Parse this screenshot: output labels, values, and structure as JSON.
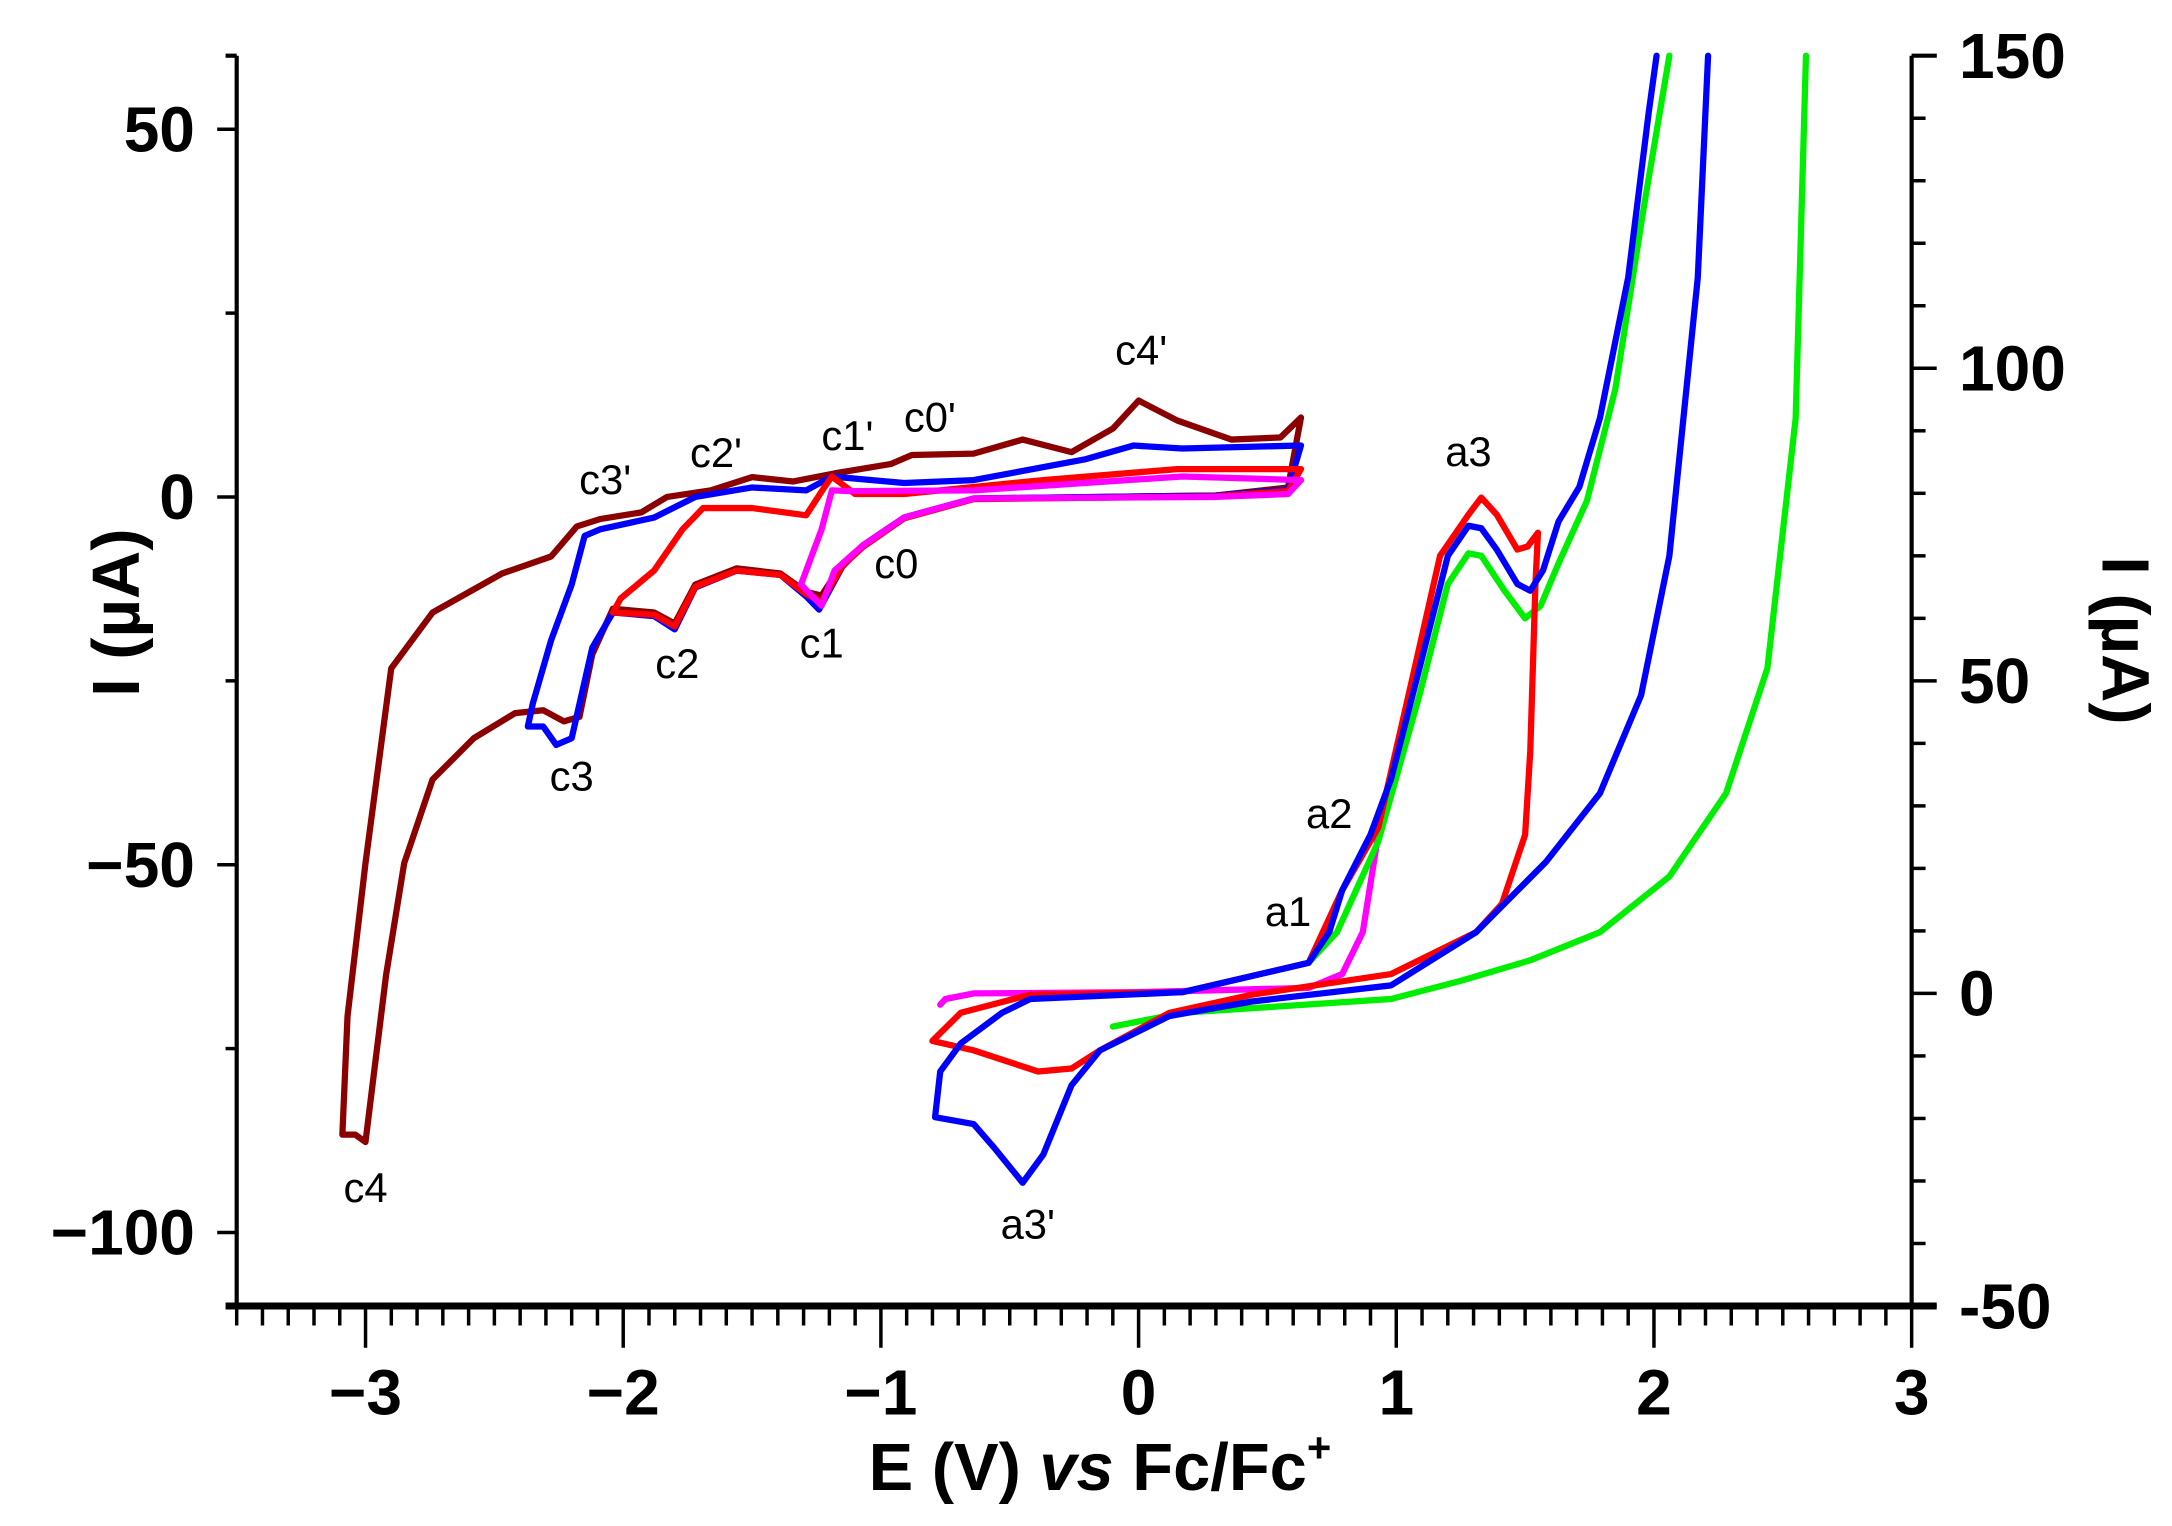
{
  "chart_data": {
    "type": "line",
    "xlabel": "E (V) vs Fc/Fc+",
    "xlabel_parts": {
      "main": "E (V) ",
      "italic": "vs",
      "ref": " Fc/Fc",
      "sup": "+"
    },
    "ylabel_left": "I (µA)",
    "ylabel_right": "I (µA)",
    "xlim": [
      -3.5,
      3
    ],
    "ylim_left": [
      -110,
      60
    ],
    "ylim_right": [
      -50,
      150
    ],
    "xticks": [
      -3,
      -2,
      -1,
      0,
      1,
      2,
      3
    ],
    "xtick_labels": [
      "−3",
      "−2",
      "−1",
      "0",
      "1",
      "2",
      "3"
    ],
    "yticks_left": [
      50,
      0,
      -50,
      -100
    ],
    "ytick_labels_left": [
      "50",
      "0",
      "−50",
      "−100"
    ],
    "yticks_right": [
      150,
      100,
      50,
      0,
      -50
    ],
    "ytick_labels_right": [
      "150",
      "100",
      "50",
      "0",
      "-50"
    ],
    "grid": false,
    "legend": "none",
    "series": [
      {
        "name": "dark red (cathodic)",
        "axis": "left",
        "color": "#8b0000",
        "points": [
          [
            0.63,
            10.8
          ],
          [
            0.58,
            1.3
          ],
          [
            0.3,
            0.2
          ],
          [
            -0.64,
            -0.2
          ],
          [
            -0.91,
            -2.8
          ],
          [
            -1.07,
            -6.6
          ],
          [
            -1.15,
            -9.1
          ],
          [
            -1.23,
            -13.4
          ],
          [
            -1.29,
            -12.9
          ],
          [
            -1.39,
            -10.4
          ],
          [
            -1.56,
            -9.7
          ],
          [
            -1.72,
            -11.9
          ],
          [
            -1.8,
            -17.2
          ],
          [
            -1.88,
            -15.7
          ],
          [
            -2.04,
            -15.2
          ],
          [
            -2.12,
            -21.4
          ],
          [
            -2.17,
            -29.9
          ],
          [
            -2.23,
            -30.5
          ],
          [
            -2.31,
            -29.0
          ],
          [
            -2.42,
            -29.4
          ],
          [
            -2.58,
            -32.8
          ],
          [
            -2.74,
            -38.4
          ],
          [
            -2.85,
            -49.8
          ],
          [
            -2.92,
            -65
          ],
          [
            -2.98,
            -82
          ],
          [
            -3.0,
            -87.7
          ],
          [
            -3.04,
            -86.7
          ],
          [
            -3.09,
            -86.7
          ],
          [
            -3.07,
            -70.6
          ],
          [
            -3.0,
            -49.8
          ],
          [
            -2.9,
            -23.3
          ],
          [
            -2.74,
            -15.7
          ],
          [
            -2.47,
            -10.4
          ],
          [
            -2.28,
            -8.1
          ],
          [
            -2.18,
            -4.0
          ],
          [
            -2.09,
            -3.0
          ],
          [
            -1.93,
            -2.1
          ],
          [
            -1.83,
            0
          ],
          [
            -1.66,
            0.9
          ],
          [
            -1.5,
            2.7
          ],
          [
            -1.34,
            2.1
          ],
          [
            -1.18,
            3.2
          ],
          [
            -0.96,
            4.5
          ],
          [
            -0.88,
            5.7
          ],
          [
            -0.64,
            5.9
          ],
          [
            -0.45,
            7.8
          ],
          [
            -0.26,
            6.1
          ],
          [
            -0.1,
            9.3
          ],
          [
            0,
            13.1
          ],
          [
            0.15,
            10.4
          ],
          [
            0.36,
            7.8
          ],
          [
            0.55,
            8.1
          ],
          [
            0.63,
            10.8
          ]
        ]
      },
      {
        "name": "blue (cathodic)",
        "axis": "left",
        "color": "#0000ff",
        "points": [
          [
            0.63,
            7.0
          ],
          [
            0.58,
            1.0
          ],
          [
            0.3,
            0.2
          ],
          [
            -0.64,
            -0.2
          ],
          [
            -0.91,
            -2.8
          ],
          [
            -1.07,
            -6.6
          ],
          [
            -1.15,
            -9.5
          ],
          [
            -1.24,
            -15.3
          ],
          [
            -1.29,
            -13.5
          ],
          [
            -1.39,
            -10.6
          ],
          [
            -1.56,
            -10.0
          ],
          [
            -1.72,
            -12.3
          ],
          [
            -1.8,
            -18.0
          ],
          [
            -1.88,
            -16.2
          ],
          [
            -2.04,
            -15.7
          ],
          [
            -2.12,
            -20.5
          ],
          [
            -2.2,
            -32.8
          ],
          [
            -2.26,
            -33.7
          ],
          [
            -2.31,
            -31.2
          ],
          [
            -2.37,
            -31.2
          ],
          [
            -2.35,
            -28
          ],
          [
            -2.28,
            -19.5
          ],
          [
            -2.2,
            -11.9
          ],
          [
            -2.15,
            -5.3
          ],
          [
            -2.09,
            -4.4
          ],
          [
            -1.88,
            -2.8
          ],
          [
            -1.72,
            0
          ],
          [
            -1.5,
            1.3
          ],
          [
            -1.29,
            0.9
          ],
          [
            -1.19,
            2.8
          ],
          [
            -0.91,
            1.9
          ],
          [
            -0.64,
            2.3
          ],
          [
            -0.21,
            5.1
          ],
          [
            -0.02,
            7.0
          ],
          [
            0.17,
            6.6
          ],
          [
            0.63,
            7.0
          ]
        ]
      },
      {
        "name": "red (cathodic)",
        "axis": "left",
        "color": "#ff0000",
        "points": [
          [
            0.63,
            3.8
          ],
          [
            0.58,
            0.8
          ],
          [
            0.3,
            0.1
          ],
          [
            -0.64,
            -0.3
          ],
          [
            -0.91,
            -2.9
          ],
          [
            -1.07,
            -6.8
          ],
          [
            -1.15,
            -9.4
          ],
          [
            -1.23,
            -14.2
          ],
          [
            -1.29,
            -13.2
          ],
          [
            -1.39,
            -10.6
          ],
          [
            -1.56,
            -10.0
          ],
          [
            -1.72,
            -12.2
          ],
          [
            -1.8,
            -17.6
          ],
          [
            -1.88,
            -16.0
          ],
          [
            -2.04,
            -15.7
          ],
          [
            -2.01,
            -13.8
          ],
          [
            -1.88,
            -10
          ],
          [
            -1.77,
            -4.4
          ],
          [
            -1.69,
            -1.5
          ],
          [
            -1.5,
            -1.5
          ],
          [
            -1.29,
            -2.5
          ],
          [
            -1.22,
            1.3
          ],
          [
            -1.19,
            2.8
          ],
          [
            -1.1,
            0.4
          ],
          [
            -0.91,
            0.4
          ],
          [
            -0.37,
            2.3
          ],
          [
            0.15,
            3.8
          ],
          [
            0.63,
            3.8
          ]
        ]
      },
      {
        "name": "magenta (cathodic)",
        "axis": "left",
        "color": "#ff00ff",
        "points": [
          [
            0.63,
            2.3
          ],
          [
            0.58,
            0.4
          ],
          [
            0.3,
            0
          ],
          [
            -0.64,
            -0.2
          ],
          [
            -0.91,
            -2.8
          ],
          [
            -1.07,
            -6.6
          ],
          [
            -1.18,
            -10
          ],
          [
            -1.23,
            -14.8
          ],
          [
            -1.31,
            -11.9
          ],
          [
            -1.23,
            -4.4
          ],
          [
            -1.19,
            0.9
          ],
          [
            -1.12,
            0.8
          ],
          [
            -0.64,
            0.9
          ],
          [
            0.17,
            2.8
          ],
          [
            0.63,
            2.3
          ]
        ]
      },
      {
        "name": "magenta (anodic)",
        "axis": "right",
        "color": "#ff00ff",
        "points": [
          [
            -0.77,
            -1.8
          ],
          [
            -0.75,
            -0.9
          ],
          [
            -0.64,
            0
          ],
          [
            0,
            0.2
          ],
          [
            0.66,
            0.9
          ],
          [
            0.79,
            3.1
          ],
          [
            0.87,
            9.8
          ],
          [
            0.93,
            25.4
          ]
        ]
      },
      {
        "name": "green (anodic)",
        "axis": "right",
        "color": "#00ee00",
        "points": [
          [
            0.66,
            4.9
          ],
          [
            0.77,
            9.8
          ],
          [
            0.93,
            24.3
          ],
          [
            1.09,
            47.7
          ],
          [
            1.2,
            65.5
          ],
          [
            1.28,
            70.4
          ],
          [
            1.33,
            70
          ],
          [
            1.42,
            64.4
          ],
          [
            1.5,
            60
          ],
          [
            1.56,
            62
          ],
          [
            1.63,
            68.8
          ],
          [
            1.74,
            78.8
          ],
          [
            1.85,
            96.7
          ],
          [
            1.96,
            125.6
          ],
          [
            2.06,
            150
          ]
        ]
      },
      {
        "name": "green (return)",
        "axis": "right",
        "color": "#00ee00",
        "points": [
          [
            2.59,
            150
          ],
          [
            2.55,
            92
          ],
          [
            2.44,
            52
          ],
          [
            2.28,
            32
          ],
          [
            2.06,
            18.7
          ],
          [
            1.79,
            9.8
          ],
          [
            1.52,
            5.3
          ],
          [
            1.25,
            2
          ],
          [
            0.98,
            -0.9
          ],
          [
            0.17,
            -3.1
          ],
          [
            -0.1,
            -5.3
          ]
        ]
      },
      {
        "name": "red (anodic)",
        "axis": "right",
        "color": "#ff0000",
        "points": [
          [
            -0.8,
            -7.6
          ],
          [
            -0.69,
            -3.1
          ],
          [
            -0.42,
            -0.2
          ],
          [
            0.17,
            0.2
          ],
          [
            0.66,
            4.9
          ],
          [
            0.79,
            16.5
          ],
          [
            0.93,
            26.5
          ],
          [
            1.06,
            50
          ],
          [
            1.17,
            70
          ],
          [
            1.28,
            76.6
          ],
          [
            1.33,
            79.3
          ],
          [
            1.39,
            76.6
          ],
          [
            1.47,
            71
          ],
          [
            1.51,
            71.5
          ],
          [
            1.55,
            73.7
          ],
          [
            1.54,
            65.5
          ],
          [
            1.52,
            38.8
          ],
          [
            1.5,
            25.4
          ],
          [
            1.41,
            14.3
          ],
          [
            1.31,
            9.8
          ],
          [
            0.98,
            3.1
          ],
          [
            0.44,
            -0.2
          ],
          [
            0.12,
            -3.1
          ],
          [
            -0.15,
            -9.1
          ],
          [
            -0.26,
            -12
          ],
          [
            -0.39,
            -12.5
          ],
          [
            -0.64,
            -9.1
          ],
          [
            -0.8,
            -7.6
          ]
        ]
      },
      {
        "name": "blue (anodic)",
        "axis": "right",
        "color": "#0000ff",
        "points": [
          [
            -0.42,
            -0.9
          ],
          [
            0.17,
            0.2
          ],
          [
            0.66,
            4.9
          ],
          [
            0.74,
            9.8
          ],
          [
            0.79,
            16.5
          ],
          [
            0.9,
            25.4
          ],
          [
            0.98,
            34.3
          ],
          [
            1.09,
            52
          ],
          [
            1.2,
            70
          ],
          [
            1.28,
            74.8
          ],
          [
            1.33,
            74.4
          ],
          [
            1.39,
            71
          ],
          [
            1.47,
            65.5
          ],
          [
            1.52,
            64.4
          ],
          [
            1.57,
            67.7
          ],
          [
            1.63,
            75.5
          ],
          [
            1.71,
            81
          ],
          [
            1.79,
            92
          ],
          [
            1.9,
            114.5
          ],
          [
            1.98,
            141
          ],
          [
            2.01,
            150
          ]
        ]
      },
      {
        "name": "blue (return)",
        "axis": "right",
        "color": "#0000ff",
        "points": [
          [
            2.21,
            150
          ],
          [
            2.17,
            114.5
          ],
          [
            2.06,
            70
          ],
          [
            1.95,
            47.7
          ],
          [
            1.79,
            32
          ],
          [
            1.58,
            21
          ],
          [
            1.31,
            9.8
          ],
          [
            0.98,
            1.3
          ],
          [
            0.44,
            -1.3
          ],
          [
            0.12,
            -3.6
          ],
          [
            -0.15,
            -9.1
          ],
          [
            -0.26,
            -14.7
          ],
          [
            -0.37,
            -25.8
          ],
          [
            -0.45,
            -30.3
          ],
          [
            -0.56,
            -24.7
          ],
          [
            -0.64,
            -20.9
          ],
          [
            -0.79,
            -19.8
          ],
          [
            -0.77,
            -12.5
          ],
          [
            -0.69,
            -8
          ],
          [
            -0.53,
            -3.1
          ],
          [
            -0.42,
            -0.9
          ]
        ]
      }
    ],
    "annotations": [
      {
        "text": "c4",
        "axis": "left",
        "x": -3.0,
        "y": -94
      },
      {
        "text": "c3",
        "axis": "left",
        "x": -2.2,
        "y": -38
      },
      {
        "text": "c3'",
        "axis": "left",
        "x": -2.07,
        "y": 2.3
      },
      {
        "text": "c2",
        "axis": "left",
        "x": -1.79,
        "y": -22.7
      },
      {
        "text": "c2'",
        "axis": "left",
        "x": -1.64,
        "y": 6
      },
      {
        "text": "c1",
        "axis": "left",
        "x": -1.23,
        "y": -19.9
      },
      {
        "text": "c1'",
        "axis": "left",
        "x": -1.13,
        "y": 8.3
      },
      {
        "text": "c0'",
        "axis": "left",
        "x": -0.81,
        "y": 10.8
      },
      {
        "text": "c0",
        "axis": "left",
        "x": -0.94,
        "y": -9.1
      },
      {
        "text": "c4'",
        "axis": "left",
        "x": 0.01,
        "y": 19.9
      },
      {
        "text": "a3",
        "axis": "right",
        "x": 1.28,
        "y": 86.6
      },
      {
        "text": "a2",
        "axis": "right",
        "x": 0.74,
        "y": 28.7
      },
      {
        "text": "a1",
        "axis": "right",
        "x": 0.58,
        "y": 13
      },
      {
        "text": "a3'",
        "axis": "right",
        "x": -0.43,
        "y": -37
      }
    ]
  }
}
